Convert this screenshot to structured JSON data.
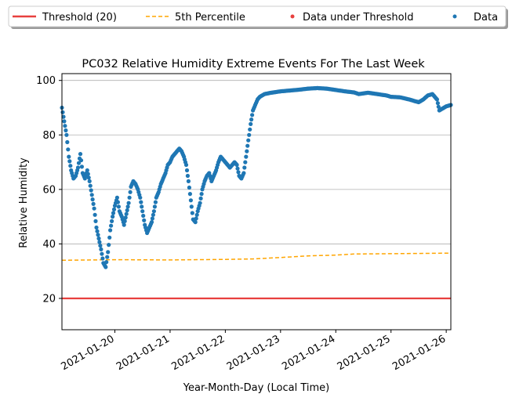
{
  "chart_data": {
    "type": "scatter",
    "title": "PC032 Relative Humidity Extreme Events For The Last Week",
    "xlabel": "Year-Month-Day (Local Time)",
    "ylabel": "Relative Humidity",
    "xlim": [
      "2021-01-19T01:00",
      "2021-01-26T02:00"
    ],
    "ylim": [
      8.5,
      102.5
    ],
    "x_ticks": [
      "2021-01-20",
      "2021-01-21",
      "2021-01-22",
      "2021-01-23",
      "2021-01-24",
      "2021-01-25",
      "2021-01-26"
    ],
    "y_ticks": [
      20,
      40,
      60,
      80,
      100
    ],
    "grid": "horizontal",
    "legend_position": "top, above the plot",
    "legend": [
      {
        "label": "Threshold (20)",
        "marker": "solid-line",
        "color": "#e8403e"
      },
      {
        "label": "5th Percentile",
        "marker": "dashed-line",
        "color": "#ffa500"
      },
      {
        "label": "Data under Threshold",
        "marker": "dot",
        "color": "#e8403e"
      },
      {
        "label": "Data",
        "marker": "dot",
        "color": "#1f77b4"
      }
    ],
    "series": [
      {
        "name": "Threshold (20)",
        "kind": "line",
        "color": "#e8403e",
        "points": [
          [
            "2021-01-19T01:00",
            20
          ],
          [
            "2021-01-26T02:00",
            20
          ]
        ]
      },
      {
        "name": "5th Percentile",
        "kind": "dashed-line",
        "color": "#ffa500",
        "points": [
          [
            "2021-01-19T01:00",
            34.0
          ],
          [
            "2021-01-20T00:00",
            34.2
          ],
          [
            "2021-01-21T00:00",
            34.1
          ],
          [
            "2021-01-22T00:00",
            34.3
          ],
          [
            "2021-01-22T12:00",
            34.5
          ],
          [
            "2021-01-23T00:00",
            35.0
          ],
          [
            "2021-01-23T12:00",
            35.6
          ],
          [
            "2021-01-24T00:00",
            35.9
          ],
          [
            "2021-01-24T08:00",
            36.3
          ],
          [
            "2021-01-25T00:00",
            36.4
          ],
          [
            "2021-01-26T02:00",
            36.6
          ]
        ]
      },
      {
        "name": "Data under Threshold",
        "kind": "scatter",
        "color": "#e8403e",
        "points": []
      },
      {
        "name": "Data",
        "kind": "scatter",
        "color": "#1f77b4",
        "points": [
          [
            "2021-01-19T01:00",
            90
          ],
          [
            "2021-01-19T02:00",
            85
          ],
          [
            "2021-01-19T03:00",
            80
          ],
          [
            "2021-01-19T04:00",
            72
          ],
          [
            "2021-01-19T05:00",
            67
          ],
          [
            "2021-01-19T06:00",
            64
          ],
          [
            "2021-01-19T07:00",
            65
          ],
          [
            "2021-01-19T08:00",
            68
          ],
          [
            "2021-01-19T09:00",
            73
          ],
          [
            "2021-01-19T10:00",
            66
          ],
          [
            "2021-01-19T11:00",
            64
          ],
          [
            "2021-01-19T12:00",
            67
          ],
          [
            "2021-01-19T13:00",
            63
          ],
          [
            "2021-01-19T14:00",
            58
          ],
          [
            "2021-01-19T15:00",
            53
          ],
          [
            "2021-01-19T16:00",
            46
          ],
          [
            "2021-01-19T17:00",
            42
          ],
          [
            "2021-01-19T18:00",
            38
          ],
          [
            "2021-01-19T19:00",
            33
          ],
          [
            "2021-01-19T20:00",
            31.5
          ],
          [
            "2021-01-19T21:00",
            37
          ],
          [
            "2021-01-19T22:00",
            45
          ],
          [
            "2021-01-19T23:00",
            50
          ],
          [
            "2021-01-20T00:00",
            54
          ],
          [
            "2021-01-20T01:00",
            57
          ],
          [
            "2021-01-20T02:00",
            52
          ],
          [
            "2021-01-20T03:00",
            50
          ],
          [
            "2021-01-20T04:00",
            47
          ],
          [
            "2021-01-20T05:00",
            51
          ],
          [
            "2021-01-20T06:00",
            55
          ],
          [
            "2021-01-20T07:00",
            61
          ],
          [
            "2021-01-20T08:00",
            63
          ],
          [
            "2021-01-20T09:00",
            62
          ],
          [
            "2021-01-20T10:00",
            60
          ],
          [
            "2021-01-20T11:00",
            57
          ],
          [
            "2021-01-20T12:00",
            52
          ],
          [
            "2021-01-20T13:00",
            47
          ],
          [
            "2021-01-20T14:00",
            44
          ],
          [
            "2021-01-20T15:00",
            46
          ],
          [
            "2021-01-20T16:00",
            48
          ],
          [
            "2021-01-20T17:00",
            52
          ],
          [
            "2021-01-20T18:00",
            57
          ],
          [
            "2021-01-20T19:00",
            59
          ],
          [
            "2021-01-20T20:00",
            62
          ],
          [
            "2021-01-20T21:00",
            64
          ],
          [
            "2021-01-20T22:00",
            66
          ],
          [
            "2021-01-20T23:00",
            69
          ],
          [
            "2021-01-21T00:00",
            70
          ],
          [
            "2021-01-21T01:00",
            72
          ],
          [
            "2021-01-21T02:00",
            73
          ],
          [
            "2021-01-21T03:00",
            74
          ],
          [
            "2021-01-21T04:00",
            75
          ],
          [
            "2021-01-21T05:00",
            74
          ],
          [
            "2021-01-21T06:00",
            72
          ],
          [
            "2021-01-21T07:00",
            69
          ],
          [
            "2021-01-21T08:00",
            63
          ],
          [
            "2021-01-21T09:00",
            56
          ],
          [
            "2021-01-21T10:00",
            49
          ],
          [
            "2021-01-21T11:00",
            48
          ],
          [
            "2021-01-21T12:00",
            52
          ],
          [
            "2021-01-21T13:00",
            55
          ],
          [
            "2021-01-21T14:00",
            60
          ],
          [
            "2021-01-21T15:00",
            63
          ],
          [
            "2021-01-21T16:00",
            65
          ],
          [
            "2021-01-21T17:00",
            66
          ],
          [
            "2021-01-21T18:00",
            63
          ],
          [
            "2021-01-21T19:00",
            65
          ],
          [
            "2021-01-21T20:00",
            67
          ],
          [
            "2021-01-21T21:00",
            70
          ],
          [
            "2021-01-21T22:00",
            72
          ],
          [
            "2021-01-21T23:00",
            71
          ],
          [
            "2021-01-22T00:00",
            70
          ],
          [
            "2021-01-22T01:00",
            69
          ],
          [
            "2021-01-22T02:00",
            68
          ],
          [
            "2021-01-22T03:00",
            69
          ],
          [
            "2021-01-22T04:00",
            70
          ],
          [
            "2021-01-22T05:00",
            69
          ],
          [
            "2021-01-22T06:00",
            65
          ],
          [
            "2021-01-22T07:00",
            64
          ],
          [
            "2021-01-22T08:00",
            66
          ],
          [
            "2021-01-22T09:00",
            72
          ],
          [
            "2021-01-22T10:00",
            78
          ],
          [
            "2021-01-22T11:00",
            84
          ],
          [
            "2021-01-22T12:00",
            89
          ],
          [
            "2021-01-22T13:00",
            91
          ],
          [
            "2021-01-22T14:00",
            93
          ],
          [
            "2021-01-22T15:00",
            94
          ],
          [
            "2021-01-22T17:00",
            95
          ],
          [
            "2021-01-22T20:00",
            95.5
          ],
          [
            "2021-01-23T00:00",
            96
          ],
          [
            "2021-01-23T04:00",
            96.3
          ],
          [
            "2021-01-23T08:00",
            96.6
          ],
          [
            "2021-01-23T12:00",
            97
          ],
          [
            "2021-01-23T16:00",
            97.2
          ],
          [
            "2021-01-23T20:00",
            97
          ],
          [
            "2021-01-24T00:00",
            96.5
          ],
          [
            "2021-01-24T04:00",
            96
          ],
          [
            "2021-01-24T08:00",
            95.6
          ],
          [
            "2021-01-24T10:00",
            95
          ],
          [
            "2021-01-24T14:00",
            95.5
          ],
          [
            "2021-01-24T18:00",
            95
          ],
          [
            "2021-01-24T22:00",
            94.5
          ],
          [
            "2021-01-25T00:00",
            94
          ],
          [
            "2021-01-25T04:00",
            93.8
          ],
          [
            "2021-01-25T08:00",
            93
          ],
          [
            "2021-01-25T12:00",
            92
          ],
          [
            "2021-01-25T14:00",
            93
          ],
          [
            "2021-01-25T16:00",
            94.5
          ],
          [
            "2021-01-25T18:00",
            95
          ],
          [
            "2021-01-25T20:00",
            93
          ],
          [
            "2021-01-25T21:00",
            89
          ],
          [
            "2021-01-25T23:00",
            90
          ],
          [
            "2021-01-26T00:00",
            90.5
          ],
          [
            "2021-01-26T02:00",
            91
          ]
        ]
      }
    ]
  },
  "colors": {
    "data": "#1f77b4",
    "threshold": "#e8403e",
    "percentile": "#ffa500",
    "grid": "#b0b0b0"
  }
}
